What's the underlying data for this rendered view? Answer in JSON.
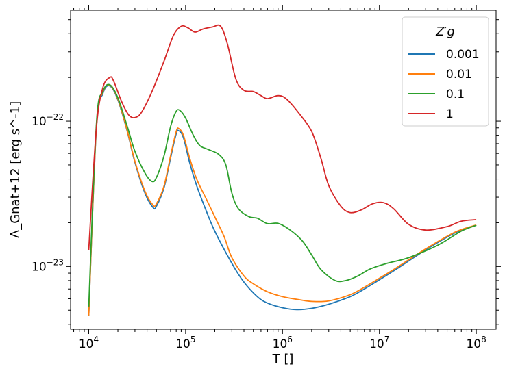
{
  "chart_data": {
    "type": "line",
    "title": "",
    "xlabel": "T []",
    "ylabel": "Λ_Gnat+12 [erg s^-1]",
    "xscale": "log",
    "yscale": "log",
    "xlim": [
      6500,
      160000000
    ],
    "ylim": [
      3.7e-24,
      5.8e-22
    ],
    "x_ticks": [
      {
        "value": 10000,
        "base": "10",
        "exp": "4"
      },
      {
        "value": 100000,
        "base": "10",
        "exp": "5"
      },
      {
        "value": 1000000,
        "base": "10",
        "exp": "6"
      },
      {
        "value": 10000000,
        "base": "10",
        "exp": "7"
      },
      {
        "value": 100000000,
        "base": "10",
        "exp": "8"
      }
    ],
    "y_ticks": [
      {
        "value": 1e-23,
        "base": "10",
        "exp": "−23"
      },
      {
        "value": 1e-22,
        "base": "10",
        "exp": "−22"
      }
    ],
    "grid": false,
    "legend": {
      "title": "Z′g",
      "placement": "top-right"
    },
    "series": [
      {
        "name": "0.001",
        "color": "#1f77b4",
        "points": [
          [
            10000,
            4.6e-24
          ],
          [
            12000,
            9e-23
          ],
          [
            14000,
            1.55e-22
          ],
          [
            16500,
            1.75e-22
          ],
          [
            20000,
            1.4e-22
          ],
          [
            25000,
            8.5e-23
          ],
          [
            30000,
            5.2e-23
          ],
          [
            38000,
            3.2e-23
          ],
          [
            46000,
            2.55e-23
          ],
          [
            50000,
            2.6e-23
          ],
          [
            60000,
            3.5e-23
          ],
          [
            70000,
            5.6e-23
          ],
          [
            80000,
            8.2e-23
          ],
          [
            85000,
            8.6e-23
          ],
          [
            95000,
            7.7e-23
          ],
          [
            110000,
            5.2e-23
          ],
          [
            130000,
            3.6e-23
          ],
          [
            160000,
            2.5e-23
          ],
          [
            200000,
            1.75e-23
          ],
          [
            300000,
            1.05e-23
          ],
          [
            400000,
            7.8e-24
          ],
          [
            550000,
            6.2e-24
          ],
          [
            700000,
            5.6e-24
          ],
          [
            1000000,
            5.2e-24
          ],
          [
            1400000,
            5.05e-24
          ],
          [
            2000000,
            5.15e-24
          ],
          [
            3000000,
            5.5e-24
          ],
          [
            5000000,
            6.2e-24
          ],
          [
            7000000,
            7e-24
          ],
          [
            10000000,
            8.1e-24
          ],
          [
            15000000,
            9.6e-24
          ],
          [
            30000000,
            1.3e-23
          ],
          [
            60000000,
            1.7e-23
          ],
          [
            100000000,
            1.92e-23
          ]
        ]
      },
      {
        "name": "0.01",
        "color": "#ff7f0e",
        "points": [
          [
            10000,
            4.6e-24
          ],
          [
            12000,
            9.2e-23
          ],
          [
            14000,
            1.58e-22
          ],
          [
            16500,
            1.77e-22
          ],
          [
            20000,
            1.42e-22
          ],
          [
            25000,
            8.6e-23
          ],
          [
            30000,
            5.3e-23
          ],
          [
            38000,
            3.3e-23
          ],
          [
            46000,
            2.65e-23
          ],
          [
            50000,
            2.7e-23
          ],
          [
            60000,
            3.6e-23
          ],
          [
            70000,
            5.8e-23
          ],
          [
            80000,
            8.5e-23
          ],
          [
            85000,
            8.9e-23
          ],
          [
            95000,
            8e-23
          ],
          [
            110000,
            5.6e-23
          ],
          [
            130000,
            4e-23
          ],
          [
            160000,
            3e-23
          ],
          [
            200000,
            2.2e-23
          ],
          [
            250000,
            1.6e-23
          ],
          [
            300000,
            1.15e-23
          ],
          [
            400000,
            8.6e-24
          ],
          [
            500000,
            7.6e-24
          ],
          [
            700000,
            6.7e-24
          ],
          [
            1000000,
            6.2e-24
          ],
          [
            1500000,
            5.9e-24
          ],
          [
            2000000,
            5.75e-24
          ],
          [
            3000000,
            5.8e-24
          ],
          [
            5000000,
            6.4e-24
          ],
          [
            7000000,
            7.2e-24
          ],
          [
            10000000,
            8.3e-24
          ],
          [
            15000000,
            9.8e-24
          ],
          [
            30000000,
            1.32e-23
          ],
          [
            60000000,
            1.72e-23
          ],
          [
            100000000,
            1.93e-23
          ]
        ]
      },
      {
        "name": "0.1",
        "color": "#2ca02c",
        "points": [
          [
            10000,
            5.3e-24
          ],
          [
            12000,
            9.6e-23
          ],
          [
            14000,
            1.6e-22
          ],
          [
            16500,
            1.78e-22
          ],
          [
            20000,
            1.45e-22
          ],
          [
            25000,
            9.2e-23
          ],
          [
            30000,
            6.2e-23
          ],
          [
            38000,
            4.4e-23
          ],
          [
            45000,
            3.85e-23
          ],
          [
            50000,
            4.1e-23
          ],
          [
            60000,
            5.8e-23
          ],
          [
            70000,
            9.2e-23
          ],
          [
            80000,
            1.17e-22
          ],
          [
            88000,
            1.18e-22
          ],
          [
            100000,
            1.05e-22
          ],
          [
            120000,
            8e-23
          ],
          [
            140000,
            6.8e-23
          ],
          [
            170000,
            6.4e-23
          ],
          [
            220000,
            5.9e-23
          ],
          [
            260000,
            5e-23
          ],
          [
            300000,
            3.2e-23
          ],
          [
            350000,
            2.5e-23
          ],
          [
            450000,
            2.2e-23
          ],
          [
            550000,
            2.15e-23
          ],
          [
            700000,
            1.97e-23
          ],
          [
            900000,
            1.98e-23
          ],
          [
            1200000,
            1.78e-23
          ],
          [
            1600000,
            1.5e-23
          ],
          [
            2000000,
            1.2e-23
          ],
          [
            2500000,
            9.5e-24
          ],
          [
            3500000,
            8e-24
          ],
          [
            4500000,
            8e-24
          ],
          [
            6000000,
            8.6e-24
          ],
          [
            8000000,
            9.6e-24
          ],
          [
            12000000,
            1.05e-23
          ],
          [
            20000000,
            1.15e-23
          ],
          [
            40000000,
            1.4e-23
          ],
          [
            70000000,
            1.75e-23
          ],
          [
            100000000,
            1.92e-23
          ]
        ]
      },
      {
        "name": "1",
        "color": "#d62728",
        "points": [
          [
            10000,
            1.3e-23
          ],
          [
            12000,
            9e-23
          ],
          [
            14000,
            1.7e-22
          ],
          [
            16500,
            2e-22
          ],
          [
            18000,
            1.9e-22
          ],
          [
            22000,
            1.35e-22
          ],
          [
            26000,
            1.1e-22
          ],
          [
            30000,
            1.06e-22
          ],
          [
            35000,
            1.15e-22
          ],
          [
            45000,
            1.6e-22
          ],
          [
            60000,
            2.6e-22
          ],
          [
            75000,
            3.9e-22
          ],
          [
            90000,
            4.5e-22
          ],
          [
            105000,
            4.4e-22
          ],
          [
            125000,
            4.1e-22
          ],
          [
            150000,
            4.3e-22
          ],
          [
            190000,
            4.45e-22
          ],
          [
            230000,
            4.5e-22
          ],
          [
            270000,
            3.4e-22
          ],
          [
            330000,
            1.95e-22
          ],
          [
            400000,
            1.63e-22
          ],
          [
            500000,
            1.6e-22
          ],
          [
            600000,
            1.5e-22
          ],
          [
            700000,
            1.43e-22
          ],
          [
            900000,
            1.5e-22
          ],
          [
            1100000,
            1.42e-22
          ],
          [
            1500000,
            1.12e-22
          ],
          [
            2000000,
            8.5e-23
          ],
          [
            2500000,
            5.5e-23
          ],
          [
            3000000,
            3.6e-23
          ],
          [
            4000000,
            2.6e-23
          ],
          [
            5000000,
            2.35e-23
          ],
          [
            6500000,
            2.45e-23
          ],
          [
            8500000,
            2.7e-23
          ],
          [
            11000000,
            2.75e-23
          ],
          [
            14000000,
            2.5e-23
          ],
          [
            20000000,
            1.95e-23
          ],
          [
            30000000,
            1.78e-23
          ],
          [
            50000000,
            1.88e-23
          ],
          [
            70000000,
            2.05e-23
          ],
          [
            100000000,
            2.1e-23
          ]
        ]
      }
    ]
  }
}
